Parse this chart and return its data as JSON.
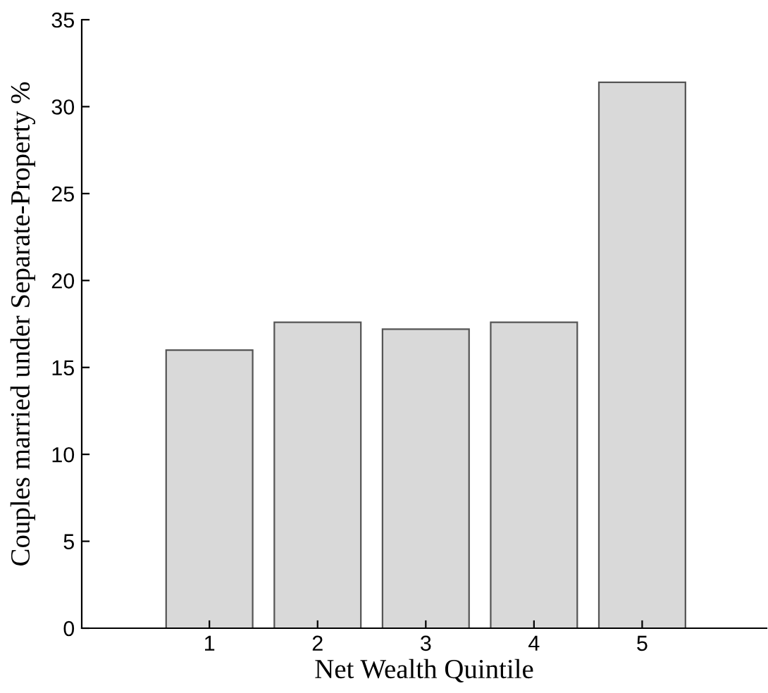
{
  "chart_data": {
    "type": "bar",
    "xlabel": "Net Wealth Quintile",
    "ylabel": "Couples married under Separate-Property %",
    "categories": [
      "1",
      "2",
      "3",
      "4",
      "5"
    ],
    "values": [
      16.0,
      17.6,
      17.2,
      17.6,
      31.4
    ],
    "color": "#d9d9d9",
    "ylim": [
      0,
      35
    ],
    "yticks": [
      0,
      5,
      10,
      15,
      20,
      25,
      30,
      35
    ],
    "grid": false,
    "legend": false
  }
}
